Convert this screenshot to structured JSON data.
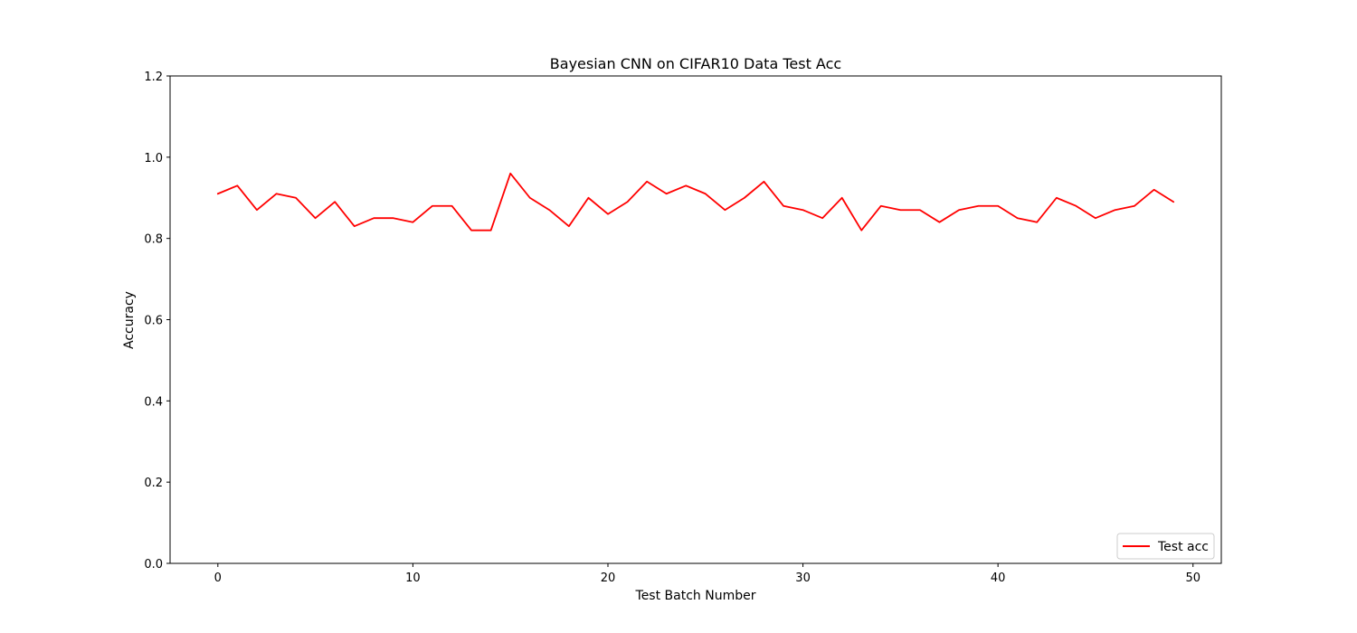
{
  "chart_data": {
    "type": "line",
    "title": "Bayesian CNN on CIFAR10 Data Test Acc",
    "xlabel": "Test Batch Number",
    "ylabel": "Accuracy",
    "xlim": [
      -2.45,
      51.45
    ],
    "ylim": [
      0.0,
      1.2
    ],
    "xticks": [
      0,
      10,
      20,
      30,
      40,
      50
    ],
    "yticks": [
      0.0,
      0.2,
      0.4,
      0.6,
      0.8,
      1.0,
      1.2
    ],
    "xtick_labels": [
      "0",
      "10",
      "20",
      "30",
      "40",
      "50"
    ],
    "ytick_labels": [
      "0.0",
      "0.2",
      "0.4",
      "0.6",
      "0.8",
      "1.0",
      "1.2"
    ],
    "grid": false,
    "legend_position": "bottom-right",
    "series": [
      {
        "name": "Test acc",
        "color": "#ff0000",
        "x": [
          0,
          1,
          2,
          3,
          4,
          5,
          6,
          7,
          8,
          9,
          10,
          11,
          12,
          13,
          14,
          15,
          16,
          17,
          18,
          19,
          20,
          21,
          22,
          23,
          24,
          25,
          26,
          27,
          28,
          29,
          30,
          31,
          32,
          33,
          34,
          35,
          36,
          37,
          38,
          39,
          40,
          41,
          42,
          43,
          44,
          45,
          46,
          47,
          48,
          49
        ],
        "values": [
          0.91,
          0.93,
          0.87,
          0.91,
          0.9,
          0.85,
          0.89,
          0.83,
          0.85,
          0.85,
          0.84,
          0.88,
          0.88,
          0.82,
          0.82,
          0.96,
          0.9,
          0.87,
          0.83,
          0.9,
          0.86,
          0.89,
          0.94,
          0.91,
          0.93,
          0.91,
          0.87,
          0.9,
          0.94,
          0.88,
          0.87,
          0.85,
          0.9,
          0.82,
          0.88,
          0.87,
          0.87,
          0.84,
          0.87,
          0.88,
          0.88,
          0.85,
          0.84,
          0.9,
          0.88,
          0.85,
          0.87,
          0.88,
          0.92,
          0.89
        ]
      }
    ]
  }
}
